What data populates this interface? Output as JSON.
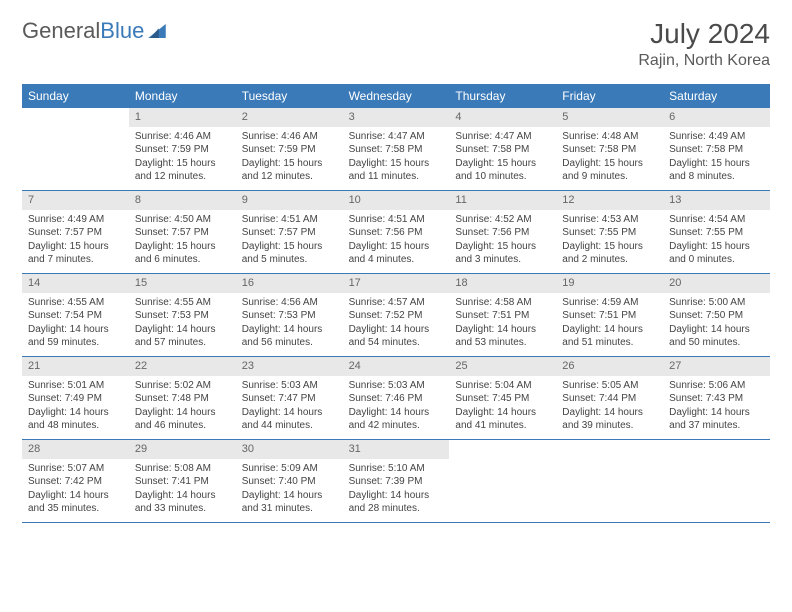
{
  "logo": {
    "word1": "General",
    "word2": "Blue"
  },
  "title": {
    "month_year": "July 2024",
    "location": "Rajin, North Korea"
  },
  "colors": {
    "header_bg": "#3a7ab8",
    "header_fg": "#ffffff",
    "daynum_bg": "#e8e8e8",
    "daynum_fg": "#666666",
    "week_border": "#3a7ab8",
    "text": "#444444",
    "logo_gray": "#5a5a5a",
    "logo_blue": "#3a7ab8"
  },
  "weekdays": [
    "Sunday",
    "Monday",
    "Tuesday",
    "Wednesday",
    "Thursday",
    "Friday",
    "Saturday"
  ],
  "weeks": [
    [
      {
        "n": "",
        "sr": "",
        "ss": "",
        "dl": ""
      },
      {
        "n": "1",
        "sr": "Sunrise: 4:46 AM",
        "ss": "Sunset: 7:59 PM",
        "dl": "Daylight: 15 hours and 12 minutes."
      },
      {
        "n": "2",
        "sr": "Sunrise: 4:46 AM",
        "ss": "Sunset: 7:59 PM",
        "dl": "Daylight: 15 hours and 12 minutes."
      },
      {
        "n": "3",
        "sr": "Sunrise: 4:47 AM",
        "ss": "Sunset: 7:58 PM",
        "dl": "Daylight: 15 hours and 11 minutes."
      },
      {
        "n": "4",
        "sr": "Sunrise: 4:47 AM",
        "ss": "Sunset: 7:58 PM",
        "dl": "Daylight: 15 hours and 10 minutes."
      },
      {
        "n": "5",
        "sr": "Sunrise: 4:48 AM",
        "ss": "Sunset: 7:58 PM",
        "dl": "Daylight: 15 hours and 9 minutes."
      },
      {
        "n": "6",
        "sr": "Sunrise: 4:49 AM",
        "ss": "Sunset: 7:58 PM",
        "dl": "Daylight: 15 hours and 8 minutes."
      }
    ],
    [
      {
        "n": "7",
        "sr": "Sunrise: 4:49 AM",
        "ss": "Sunset: 7:57 PM",
        "dl": "Daylight: 15 hours and 7 minutes."
      },
      {
        "n": "8",
        "sr": "Sunrise: 4:50 AM",
        "ss": "Sunset: 7:57 PM",
        "dl": "Daylight: 15 hours and 6 minutes."
      },
      {
        "n": "9",
        "sr": "Sunrise: 4:51 AM",
        "ss": "Sunset: 7:57 PM",
        "dl": "Daylight: 15 hours and 5 minutes."
      },
      {
        "n": "10",
        "sr": "Sunrise: 4:51 AM",
        "ss": "Sunset: 7:56 PM",
        "dl": "Daylight: 15 hours and 4 minutes."
      },
      {
        "n": "11",
        "sr": "Sunrise: 4:52 AM",
        "ss": "Sunset: 7:56 PM",
        "dl": "Daylight: 15 hours and 3 minutes."
      },
      {
        "n": "12",
        "sr": "Sunrise: 4:53 AM",
        "ss": "Sunset: 7:55 PM",
        "dl": "Daylight: 15 hours and 2 minutes."
      },
      {
        "n": "13",
        "sr": "Sunrise: 4:54 AM",
        "ss": "Sunset: 7:55 PM",
        "dl": "Daylight: 15 hours and 0 minutes."
      }
    ],
    [
      {
        "n": "14",
        "sr": "Sunrise: 4:55 AM",
        "ss": "Sunset: 7:54 PM",
        "dl": "Daylight: 14 hours and 59 minutes."
      },
      {
        "n": "15",
        "sr": "Sunrise: 4:55 AM",
        "ss": "Sunset: 7:53 PM",
        "dl": "Daylight: 14 hours and 57 minutes."
      },
      {
        "n": "16",
        "sr": "Sunrise: 4:56 AM",
        "ss": "Sunset: 7:53 PM",
        "dl": "Daylight: 14 hours and 56 minutes."
      },
      {
        "n": "17",
        "sr": "Sunrise: 4:57 AM",
        "ss": "Sunset: 7:52 PM",
        "dl": "Daylight: 14 hours and 54 minutes."
      },
      {
        "n": "18",
        "sr": "Sunrise: 4:58 AM",
        "ss": "Sunset: 7:51 PM",
        "dl": "Daylight: 14 hours and 53 minutes."
      },
      {
        "n": "19",
        "sr": "Sunrise: 4:59 AM",
        "ss": "Sunset: 7:51 PM",
        "dl": "Daylight: 14 hours and 51 minutes."
      },
      {
        "n": "20",
        "sr": "Sunrise: 5:00 AM",
        "ss": "Sunset: 7:50 PM",
        "dl": "Daylight: 14 hours and 50 minutes."
      }
    ],
    [
      {
        "n": "21",
        "sr": "Sunrise: 5:01 AM",
        "ss": "Sunset: 7:49 PM",
        "dl": "Daylight: 14 hours and 48 minutes."
      },
      {
        "n": "22",
        "sr": "Sunrise: 5:02 AM",
        "ss": "Sunset: 7:48 PM",
        "dl": "Daylight: 14 hours and 46 minutes."
      },
      {
        "n": "23",
        "sr": "Sunrise: 5:03 AM",
        "ss": "Sunset: 7:47 PM",
        "dl": "Daylight: 14 hours and 44 minutes."
      },
      {
        "n": "24",
        "sr": "Sunrise: 5:03 AM",
        "ss": "Sunset: 7:46 PM",
        "dl": "Daylight: 14 hours and 42 minutes."
      },
      {
        "n": "25",
        "sr": "Sunrise: 5:04 AM",
        "ss": "Sunset: 7:45 PM",
        "dl": "Daylight: 14 hours and 41 minutes."
      },
      {
        "n": "26",
        "sr": "Sunrise: 5:05 AM",
        "ss": "Sunset: 7:44 PM",
        "dl": "Daylight: 14 hours and 39 minutes."
      },
      {
        "n": "27",
        "sr": "Sunrise: 5:06 AM",
        "ss": "Sunset: 7:43 PM",
        "dl": "Daylight: 14 hours and 37 minutes."
      }
    ],
    [
      {
        "n": "28",
        "sr": "Sunrise: 5:07 AM",
        "ss": "Sunset: 7:42 PM",
        "dl": "Daylight: 14 hours and 35 minutes."
      },
      {
        "n": "29",
        "sr": "Sunrise: 5:08 AM",
        "ss": "Sunset: 7:41 PM",
        "dl": "Daylight: 14 hours and 33 minutes."
      },
      {
        "n": "30",
        "sr": "Sunrise: 5:09 AM",
        "ss": "Sunset: 7:40 PM",
        "dl": "Daylight: 14 hours and 31 minutes."
      },
      {
        "n": "31",
        "sr": "Sunrise: 5:10 AM",
        "ss": "Sunset: 7:39 PM",
        "dl": "Daylight: 14 hours and 28 minutes."
      },
      {
        "n": "",
        "sr": "",
        "ss": "",
        "dl": ""
      },
      {
        "n": "",
        "sr": "",
        "ss": "",
        "dl": ""
      },
      {
        "n": "",
        "sr": "",
        "ss": "",
        "dl": ""
      }
    ]
  ]
}
